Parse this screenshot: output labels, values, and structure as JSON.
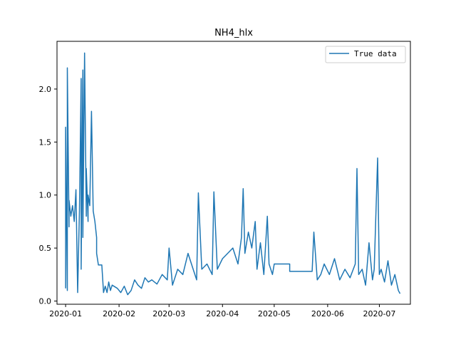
{
  "chart_data": {
    "type": "line",
    "title": "NH4_hlx",
    "xlabel": "",
    "ylabel": "",
    "legend": {
      "label": "True data",
      "position": "top-right"
    },
    "line_color": "#1f77b4",
    "xlim": [
      "2019-12-27",
      "2020-07-19"
    ],
    "ylim": [
      -0.03,
      2.45
    ],
    "x_ticks": [
      "2020-01",
      "2020-02",
      "2020-03",
      "2020-04",
      "2020-05",
      "2020-06",
      "2020-07"
    ],
    "y_ticks": [
      0.0,
      0.5,
      1.0,
      1.5,
      2.0
    ],
    "y_tick_labels": [
      "0.0",
      "0.5",
      "1.0",
      "1.5",
      "2.0"
    ],
    "series": [
      {
        "name": "True data",
        "x": [
          "2020-01-01",
          "2020-01-01",
          "2020-01-02",
          "2020-01-02",
          "2020-01-03",
          "2020-01-03",
          "2020-01-04",
          "2020-01-05",
          "2020-01-06",
          "2020-01-07",
          "2020-01-08",
          "2020-01-09",
          "2020-01-10",
          "2020-01-10",
          "2020-01-11",
          "2020-01-11",
          "2020-01-12",
          "2020-01-13",
          "2020-01-13",
          "2020-01-14",
          "2020-01-14",
          "2020-01-15",
          "2020-01-16",
          "2020-01-17",
          "2020-01-18",
          "2020-01-19",
          "2020-01-19",
          "2020-01-20",
          "2020-01-21",
          "2020-01-22",
          "2020-01-23",
          "2020-01-24",
          "2020-01-25",
          "2020-01-26",
          "2020-01-27",
          "2020-01-28",
          "2020-01-31",
          "2020-02-02",
          "2020-02-04",
          "2020-02-06",
          "2020-02-08",
          "2020-02-10",
          "2020-02-12",
          "2020-02-14",
          "2020-02-16",
          "2020-02-18",
          "2020-02-20",
          "2020-02-23",
          "2020-02-26",
          "2020-02-29",
          "2020-03-01",
          "2020-03-03",
          "2020-03-06",
          "2020-03-09",
          "2020-03-12",
          "2020-03-15",
          "2020-03-17",
          "2020-03-18",
          "2020-03-20",
          "2020-03-23",
          "2020-03-26",
          "2020-03-27",
          "2020-03-29",
          "2020-04-01",
          "2020-04-04",
          "2020-04-07",
          "2020-04-10",
          "2020-04-12",
          "2020-04-13",
          "2020-04-14",
          "2020-04-16",
          "2020-04-18",
          "2020-04-20",
          "2020-04-21",
          "2020-04-23",
          "2020-04-25",
          "2020-04-27",
          "2020-04-28",
          "2020-04-30",
          "2020-05-01",
          "2020-05-10",
          "2020-05-10",
          "2020-05-23",
          "2020-05-24",
          "2020-05-26",
          "2020-05-28",
          "2020-05-30",
          "2020-06-02",
          "2020-06-05",
          "2020-06-08",
          "2020-06-11",
          "2020-06-14",
          "2020-06-17",
          "2020-06-18",
          "2020-06-19",
          "2020-06-21",
          "2020-06-23",
          "2020-06-25",
          "2020-06-27",
          "2020-06-28",
          "2020-06-30",
          "2020-07-01",
          "2020-07-02",
          "2020-07-04",
          "2020-07-06",
          "2020-07-08",
          "2020-07-10",
          "2020-07-12",
          "2020-07-13"
        ],
        "values": [
          0.12,
          1.64,
          0.1,
          2.2,
          0.7,
          0.95,
          0.8,
          0.9,
          0.75,
          1.05,
          0.08,
          0.85,
          2.1,
          0.3,
          2.18,
          0.6,
          2.34,
          0.8,
          1.25,
          0.75,
          1.0,
          0.9,
          1.79,
          0.85,
          0.75,
          0.6,
          0.45,
          0.34,
          0.34,
          0.34,
          0.08,
          0.14,
          0.08,
          0.18,
          0.1,
          0.15,
          0.12,
          0.08,
          0.14,
          0.06,
          0.1,
          0.2,
          0.15,
          0.12,
          0.22,
          0.18,
          0.2,
          0.16,
          0.25,
          0.2,
          0.5,
          0.15,
          0.3,
          0.25,
          0.45,
          0.3,
          0.2,
          1.02,
          0.3,
          0.35,
          0.25,
          1.03,
          0.3,
          0.4,
          0.45,
          0.5,
          0.35,
          0.6,
          1.06,
          0.45,
          0.65,
          0.5,
          0.75,
          0.3,
          0.55,
          0.25,
          0.8,
          0.35,
          0.25,
          0.35,
          0.35,
          0.28,
          0.28,
          0.65,
          0.2,
          0.25,
          0.35,
          0.25,
          0.4,
          0.2,
          0.3,
          0.22,
          0.35,
          1.25,
          0.25,
          0.3,
          0.15,
          0.55,
          0.2,
          0.3,
          1.35,
          0.25,
          0.3,
          0.18,
          0.38,
          0.15,
          0.25,
          0.1,
          0.07
        ]
      }
    ]
  }
}
